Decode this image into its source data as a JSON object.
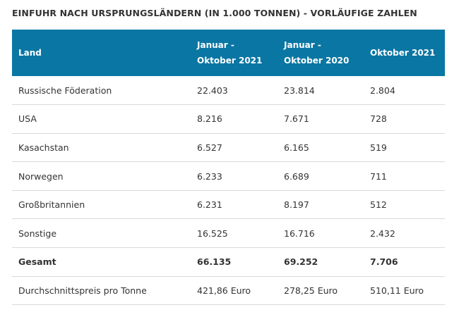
{
  "title": "EINFUHR NACH URSPRUNGSLÄNDERN (IN 1.000 TONNEN) - VORLÄUFIGE ZAHLEN",
  "colors": {
    "header_bg": "#0a76a3",
    "header_text": "#ffffff",
    "row_border": "#d9d9d9"
  },
  "headers": {
    "land": "Land",
    "col2_line1": "Januar -",
    "col2_line2": "Oktober 2021",
    "col3_line1": "Januar -",
    "col3_line2": "Oktober 2020",
    "col4": "Oktober 2021"
  },
  "rows": [
    {
      "land": "Russische Föderation",
      "v2021": "22.403",
      "v2020": "23.814",
      "okt2021": "2.804"
    },
    {
      "land": "USA",
      "v2021": "8.216",
      "v2020": "7.671",
      "okt2021": "728"
    },
    {
      "land": "Kasachstan",
      "v2021": "6.527",
      "v2020": "6.165",
      "okt2021": "519"
    },
    {
      "land": "Norwegen",
      "v2021": "6.233",
      "v2020": "6.689",
      "okt2021": "711"
    },
    {
      "land": "Großbritannien",
      "v2021": "6.231",
      "v2020": "8.197",
      "okt2021": "512"
    },
    {
      "land": "Sonstige",
      "v2021": "16.525",
      "v2020": "16.716",
      "okt2021": "2.432"
    },
    {
      "land": "Gesamt",
      "v2021": "66.135",
      "v2020": "69.252",
      "okt2021": "7.706"
    },
    {
      "land": "Durchschnittspreis pro Tonne",
      "v2021": "421,86 Euro",
      "v2020": "278,25 Euro",
      "okt2021": "510,11 Euro"
    }
  ]
}
